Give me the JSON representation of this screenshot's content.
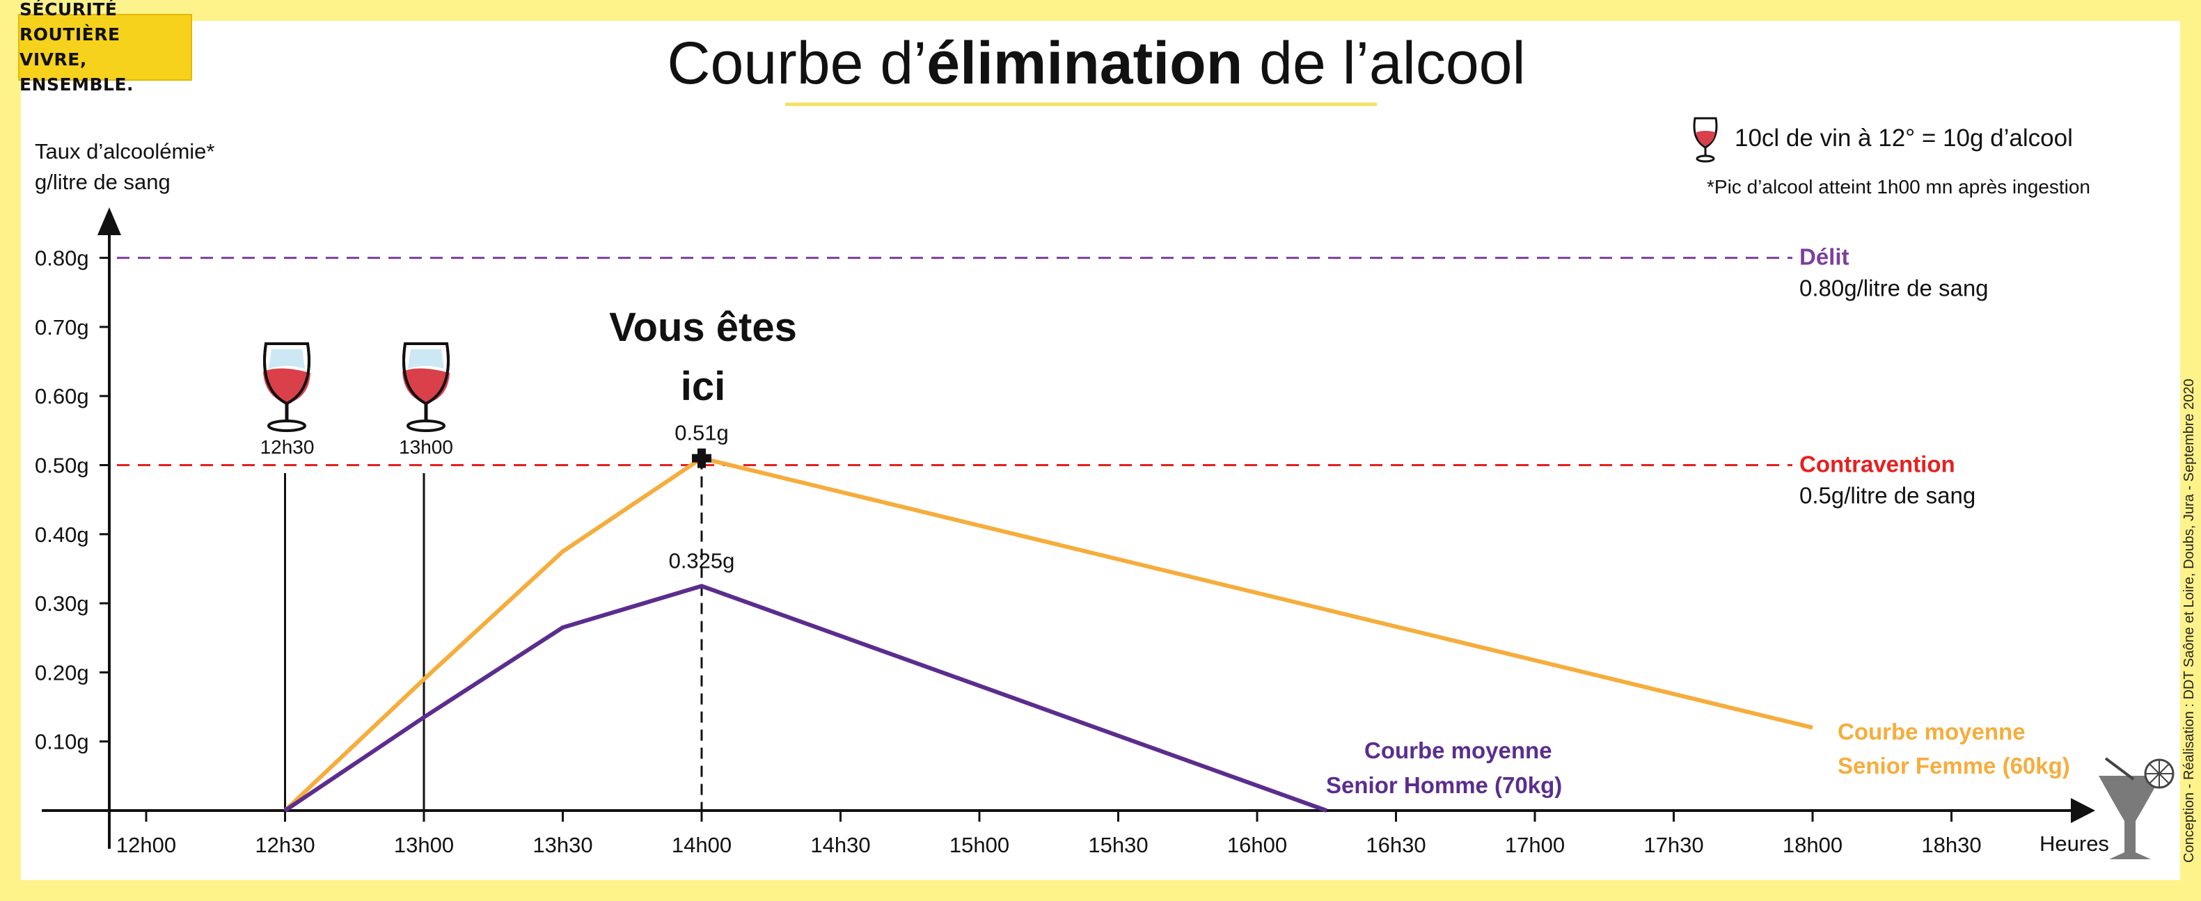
{
  "badge": {
    "line1": "SÉCURITÉ ROUTIÈRE",
    "line2": "VIVRE, ENSEMBLE."
  },
  "title": {
    "part1": "Courbe d’",
    "emph": "élimination",
    "part2": " de l’alcool"
  },
  "legend": {
    "glass_note": "10cl de vin à 12° = 10g d’alcool",
    "peak_note": "*Pic d’alcool atteint 1h00 mn après ingestion"
  },
  "credit": "Conception - Réalisation : DDT Saône et Loire, Doubs, Jura - Septembre 2020",
  "here_label": {
    "line1": "Vous êtes",
    "line2": "ici"
  },
  "colors": {
    "background": "#fef28a",
    "senior_femme": "#f6ad3c",
    "senior_homme": "#5b2d8e",
    "delit": "#7b3fa0",
    "contravention": "#e62020"
  },
  "icons": [
    "wine-glass-icon",
    "cocktail-glass-icon"
  ],
  "chart_data": {
    "type": "line",
    "ylabel_line1": "Taux d’alcoolémie*",
    "ylabel_line2": "g/litre de sang",
    "xlabel": "Heures",
    "categories": [
      "12h00",
      "12h30",
      "13h00",
      "13h30",
      "14h00",
      "14h30",
      "15h00",
      "15h30",
      "16h00",
      "16h30",
      "17h00",
      "17h30",
      "18h00",
      "18h30"
    ],
    "yticks": [
      "0.10g",
      "0.20g",
      "0.30g",
      "0.40g",
      "0.50g",
      "0.60g",
      "0.70g",
      "0.80g"
    ],
    "ylim": [
      0,
      0.8
    ],
    "series": [
      {
        "name_line1": "Courbe moyenne",
        "name_line2": "Senior Femme (60kg)",
        "color": "#f6ad3c",
        "points": [
          [
            "12h30",
            0
          ],
          [
            "13h00",
            0.19
          ],
          [
            "13h30",
            0.375
          ],
          [
            "14h00",
            0.51
          ],
          [
            "18h00",
            0.12
          ]
        ]
      },
      {
        "name_line1": "Courbe moyenne",
        "name_line2": "Senior Homme (70kg)",
        "color": "#5b2d8e",
        "points": [
          [
            "12h30",
            0
          ],
          [
            "13h00",
            0.135
          ],
          [
            "13h30",
            0.265
          ],
          [
            "14h00",
            0.325
          ],
          [
            "16h15",
            0
          ]
        ]
      }
    ],
    "thresholds": [
      {
        "name": "Délit",
        "desc": "0.80g/litre de sang",
        "value": 0.8,
        "color": "#7b3fa0"
      },
      {
        "name": "Contravention",
        "desc": "0.5g/litre de sang",
        "value": 0.5,
        "color": "#e62020"
      }
    ],
    "drinks": [
      {
        "time": "12h30",
        "label": "12h30"
      },
      {
        "time": "13h00",
        "label": "13h00"
      }
    ],
    "annotations": [
      {
        "time": "14h00",
        "value": 0.51,
        "label": "0.51g"
      },
      {
        "time": "14h00",
        "value": 0.325,
        "label": "0.325g"
      }
    ],
    "grid": false
  }
}
